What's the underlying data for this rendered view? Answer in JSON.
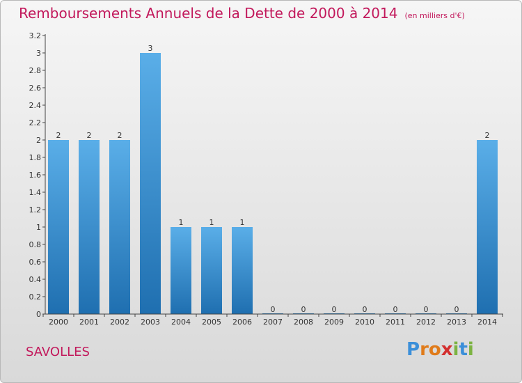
{
  "header": {
    "title": "Remboursements Annuels de la Dette de 2000 à 2014",
    "subtitle": "(en milliers d'€)"
  },
  "footer": {
    "commune": "SAVOLLES",
    "logo_letters": [
      "P",
      "r",
      "o",
      "x",
      "i",
      "t",
      "i"
    ]
  },
  "colors": {
    "title": "#c2185b",
    "bar_top": "#5aaee8",
    "bar_bottom": "#1f6fb0",
    "logo": [
      "#3b8fd9",
      "#e07b1a",
      "#e07b1a",
      "#d32f2f",
      "#7cb342",
      "#3b8fd9",
      "#7cb342"
    ]
  },
  "chart_data": {
    "type": "bar",
    "categories": [
      "2000",
      "2001",
      "2002",
      "2003",
      "2004",
      "2005",
      "2006",
      "2007",
      "2008",
      "2009",
      "2010",
      "2011",
      "2012",
      "2013",
      "2014"
    ],
    "values": [
      2,
      2,
      2,
      3,
      1,
      1,
      1,
      0,
      0,
      0,
      0,
      0,
      0,
      0,
      2
    ],
    "data_labels": [
      "2",
      "2",
      "2",
      "3",
      "1",
      "1",
      "1",
      "0",
      "0",
      "0",
      "0",
      "0",
      "0",
      "0",
      "2"
    ],
    "y_ticks": [
      0,
      0.2,
      0.4,
      0.6,
      0.8,
      1,
      1.2,
      1.4,
      1.6,
      1.8,
      2,
      2.2,
      2.4,
      2.6,
      2.8,
      3,
      3.2
    ],
    "y_tick_labels": [
      "0",
      "0.2",
      "0.4",
      "0.6",
      "0.8",
      "1",
      "1.2",
      "1.4",
      "1.6",
      "1.8",
      "2",
      "2.2",
      "2.4",
      "2.6",
      "2.8",
      "3",
      "3.2"
    ],
    "ylim": [
      0,
      3.2
    ],
    "grid": false,
    "xlabel": "",
    "ylabel": ""
  }
}
